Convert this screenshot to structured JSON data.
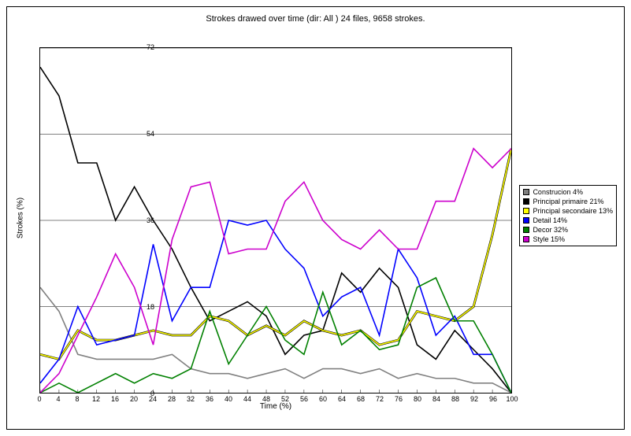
{
  "chart": {
    "title": "Strokes drawed over time (dir: All ) 24 files, 9658 strokes.",
    "type": "line",
    "xlabel": "Time (%)",
    "ylabel": "Strokes (%)",
    "xlim": [
      0,
      100
    ],
    "ylim": [
      0,
      72
    ],
    "xtick_step": 4,
    "ytick_values": [
      0,
      18,
      36,
      54,
      72
    ],
    "background_color": "#ffffff",
    "grid_color": "#000000",
    "grid_on_y": true,
    "grid_on_x": false,
    "line_width": 1.6,
    "title_fontsize": 11,
    "label_fontsize": 10,
    "tick_fontsize": 9,
    "legend_fontsize": 9,
    "legend_position": "right-middle",
    "x_categories": [
      0,
      4,
      8,
      12,
      16,
      20,
      24,
      28,
      32,
      36,
      40,
      44,
      48,
      52,
      56,
      60,
      64,
      68,
      72,
      76,
      80,
      84,
      88,
      92,
      96,
      100
    ],
    "series": [
      {
        "name": "Construcion 4%",
        "color": "#808080",
        "values": [
          22,
          17,
          8,
          7,
          7,
          7,
          7,
          8,
          5,
          4,
          4,
          3,
          4,
          5,
          3,
          5,
          5,
          4,
          5,
          3,
          4,
          3,
          3,
          2,
          2,
          0
        ]
      },
      {
        "name": "Principal primaire 21%",
        "color": "#000000",
        "values": [
          68,
          62,
          48,
          48,
          36,
          43,
          36,
          30,
          22,
          15,
          17,
          19,
          16,
          8,
          12,
          13,
          25,
          21,
          26,
          22,
          10,
          7,
          13,
          9,
          5,
          0
        ]
      },
      {
        "name": "Principal secondaire 13%",
        "color": "#ffff00",
        "values": [
          8,
          7,
          13,
          11,
          11,
          12,
          13,
          12,
          12,
          16,
          15,
          12,
          14,
          12,
          15,
          13,
          12,
          13,
          10,
          11,
          17,
          16,
          15,
          18,
          33,
          51
        ]
      },
      {
        "name": "Detail 14%",
        "color": "#0000ff",
        "values": [
          2,
          7,
          18,
          10,
          11,
          12,
          31,
          15,
          22,
          22,
          36,
          35,
          36,
          30,
          26,
          16,
          20,
          22,
          12,
          30,
          24,
          12,
          16,
          8,
          8,
          0
        ]
      },
      {
        "name": "Decor 32%",
        "color": "#008000",
        "values": [
          0,
          2,
          0,
          2,
          4,
          2,
          4,
          3,
          5,
          17,
          6,
          12,
          18,
          11,
          8,
          21,
          10,
          13,
          9,
          10,
          22,
          24,
          15,
          15,
          8,
          0
        ]
      },
      {
        "name": "Style 15%",
        "color": "#cc00cc",
        "values": [
          0,
          4,
          12,
          20,
          29,
          22,
          10,
          32,
          43,
          44,
          29,
          30,
          30,
          40,
          44,
          36,
          32,
          30,
          34,
          30,
          30,
          40,
          40,
          51,
          47,
          51
        ]
      }
    ]
  }
}
